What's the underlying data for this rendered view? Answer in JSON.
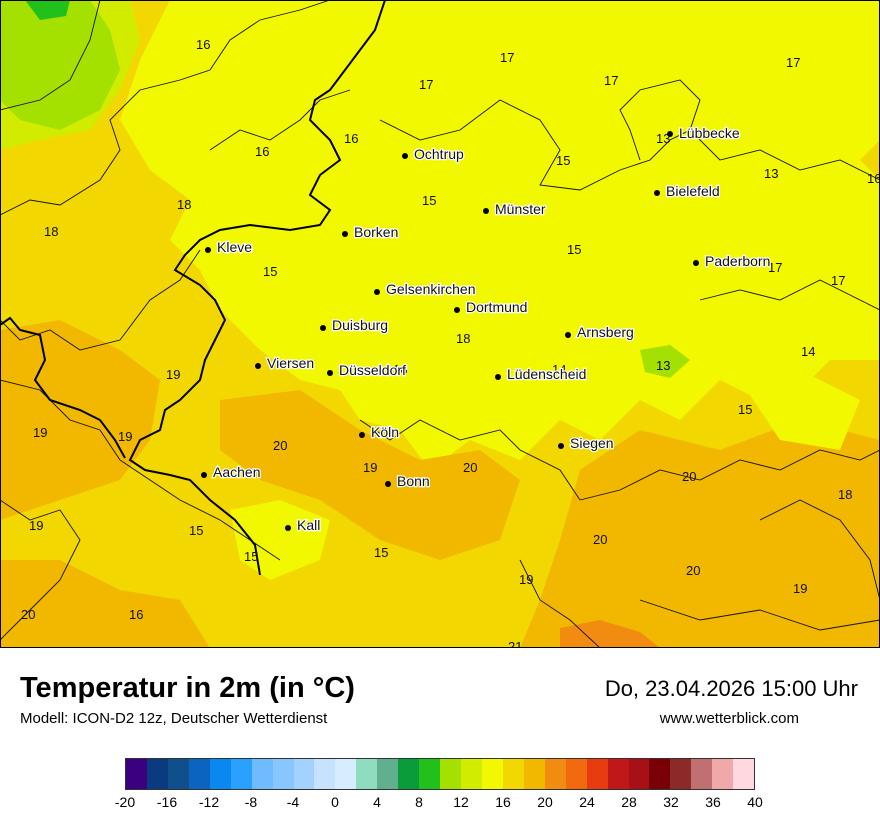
{
  "map": {
    "cities": [
      {
        "name": "Ochtrup"
      },
      {
        "name": "Lübbecke"
      },
      {
        "name": "Bielefeld"
      },
      {
        "name": "Münster"
      },
      {
        "name": "Borken"
      },
      {
        "name": "Kleve"
      },
      {
        "name": "Paderborn"
      },
      {
        "name": "Gelsenkirchen"
      },
      {
        "name": "Dortmund"
      },
      {
        "name": "Duisburg"
      },
      {
        "name": "Arnsberg"
      },
      {
        "name": "Viersen"
      },
      {
        "name": "Düsseldorf"
      },
      {
        "name": "Lüdenscheid"
      },
      {
        "name": "Köln"
      },
      {
        "name": "Siegen"
      },
      {
        "name": "Aachen"
      },
      {
        "name": "Bonn"
      },
      {
        "name": "Kall"
      }
    ],
    "temperatures": [
      "16",
      "17",
      "17",
      "17",
      "17",
      "16",
      "16",
      "15",
      "13",
      "13",
      "16",
      "18",
      "15",
      "18",
      "15",
      "15",
      "17",
      "17",
      "18",
      "14",
      "19",
      "16",
      "14",
      "13",
      "19",
      "19",
      "15",
      "20",
      "19",
      "20",
      "20",
      "18",
      "19",
      "15",
      "20",
      "15",
      "15",
      "20",
      "19",
      "19",
      "20",
      "16",
      "21"
    ]
  },
  "footer": {
    "title": "Temperatur in 2m (in °C)",
    "subtitle": "Modell: ICON-D2 12z, Deutscher Wetterdienst",
    "datetime": "Do, 23.04.2026 15:00 Uhr",
    "website": "www.wetterblick.com"
  },
  "scale": {
    "colors": [
      "#3a0080",
      "#0a3a80",
      "#0f4f8c",
      "#0a64c0",
      "#0a88f0",
      "#2aa0ff",
      "#70baff",
      "#88c6ff",
      "#a4d2ff",
      "#c6e2ff",
      "#d8ecff",
      "#90dcc0",
      "#60b090",
      "#0a9c3a",
      "#22c01a",
      "#a4e000",
      "#d2ec00",
      "#f2f800",
      "#f2d800",
      "#f2b800",
      "#f28c10",
      "#f26a10",
      "#e63c10",
      "#c01818",
      "#a81018",
      "#7a0008",
      "#8c2a2a",
      "#c07070",
      "#f0a8a8",
      "#ffd8e0"
    ],
    "ticks": [
      "-20",
      "-16",
      "-12",
      "-8",
      "-4",
      "0",
      "4",
      "8",
      "12",
      "16",
      "20",
      "24",
      "28",
      "32",
      "36",
      "40"
    ]
  }
}
